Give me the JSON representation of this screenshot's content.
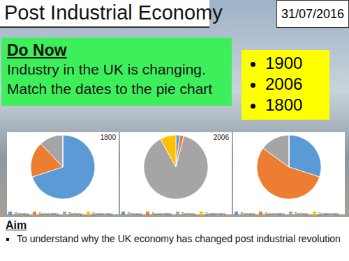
{
  "slide": {
    "title": "Post Industrial Economy",
    "date": "31/07/2016",
    "do_now": {
      "heading": "Do Now",
      "lines": [
        "Industry in the UK is changing.",
        "Match the dates to the pie chart"
      ]
    },
    "options": [
      "1900",
      "2006",
      "1800"
    ],
    "aim": {
      "heading": "Aim",
      "text": "To understand why the UK economy has changed post industrial revolution"
    }
  },
  "chart_data": [
    {
      "type": "pie",
      "title": "1800",
      "categories": [
        "Primary",
        "Secondary",
        "Tertiary",
        "Quaternary"
      ],
      "values": [
        70,
        18,
        12,
        0
      ],
      "colors": [
        "#5b9bd5",
        "#ed7d31",
        "#a5a5a5",
        "#ffc000"
      ],
      "legend": "bottom"
    },
    {
      "type": "pie",
      "title": "2006",
      "categories": [
        "Primary",
        "Secondary",
        "Tertiary",
        "Quaternary"
      ],
      "values": [
        2,
        2,
        88,
        8
      ],
      "colors": [
        "#5b9bd5",
        "#ed7d31",
        "#a5a5a5",
        "#ffc000"
      ],
      "legend": "bottom"
    },
    {
      "type": "pie",
      "categories": [
        "Primary",
        "Secondary",
        "Tertiary",
        "Quaternary"
      ],
      "values": [
        30,
        55,
        15,
        0
      ],
      "colors": [
        "#5b9bd5",
        "#ed7d31",
        "#a5a5a5",
        "#ffc000"
      ],
      "legend": "bottom"
    }
  ]
}
